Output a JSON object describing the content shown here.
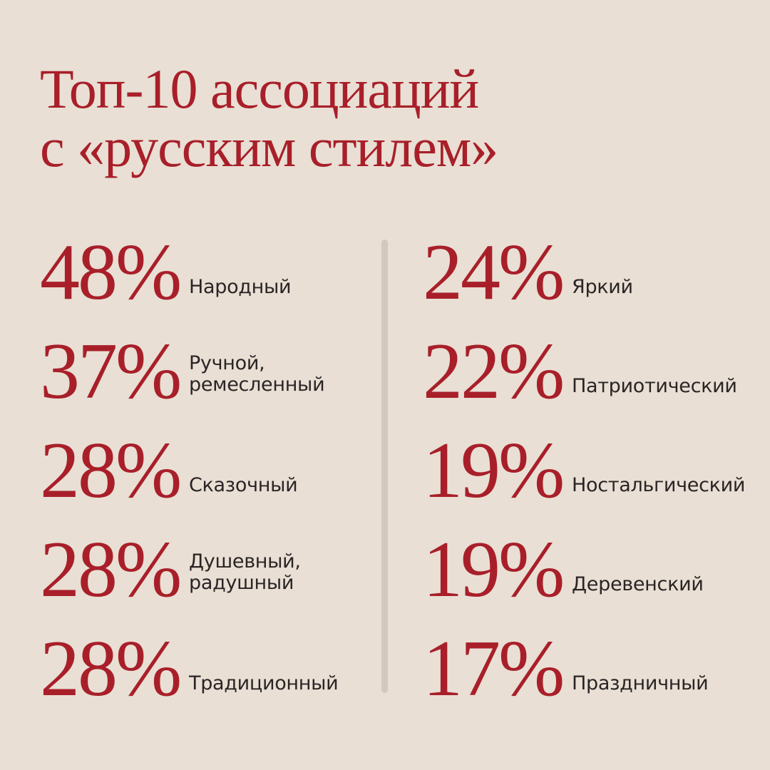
{
  "title": {
    "line1": "Топ-10 ассоциаций",
    "line2": "с «русским стилем»"
  },
  "colors": {
    "background": "#e9dfd4",
    "accent": "#a81f2a",
    "text": "#2a2525",
    "divider": "#d3c8bb"
  },
  "items_left": [
    {
      "pct": "48%",
      "label": "Народный"
    },
    {
      "pct": "37%",
      "label": "Ручной,\nремесленный"
    },
    {
      "pct": "28%",
      "label": "Сказочный"
    },
    {
      "pct": "28%",
      "label": "Душевный,\nрадушный"
    },
    {
      "pct": "28%",
      "label": "Традиционный"
    }
  ],
  "items_right": [
    {
      "pct": "24%",
      "label": "Яркий"
    },
    {
      "pct": "22%",
      "label": "Патриотический"
    },
    {
      "pct": "19%",
      "label": "Ностальгический"
    },
    {
      "pct": "19%",
      "label": "Деревенский"
    },
    {
      "pct": "17%",
      "label": "Праздничный"
    }
  ]
}
